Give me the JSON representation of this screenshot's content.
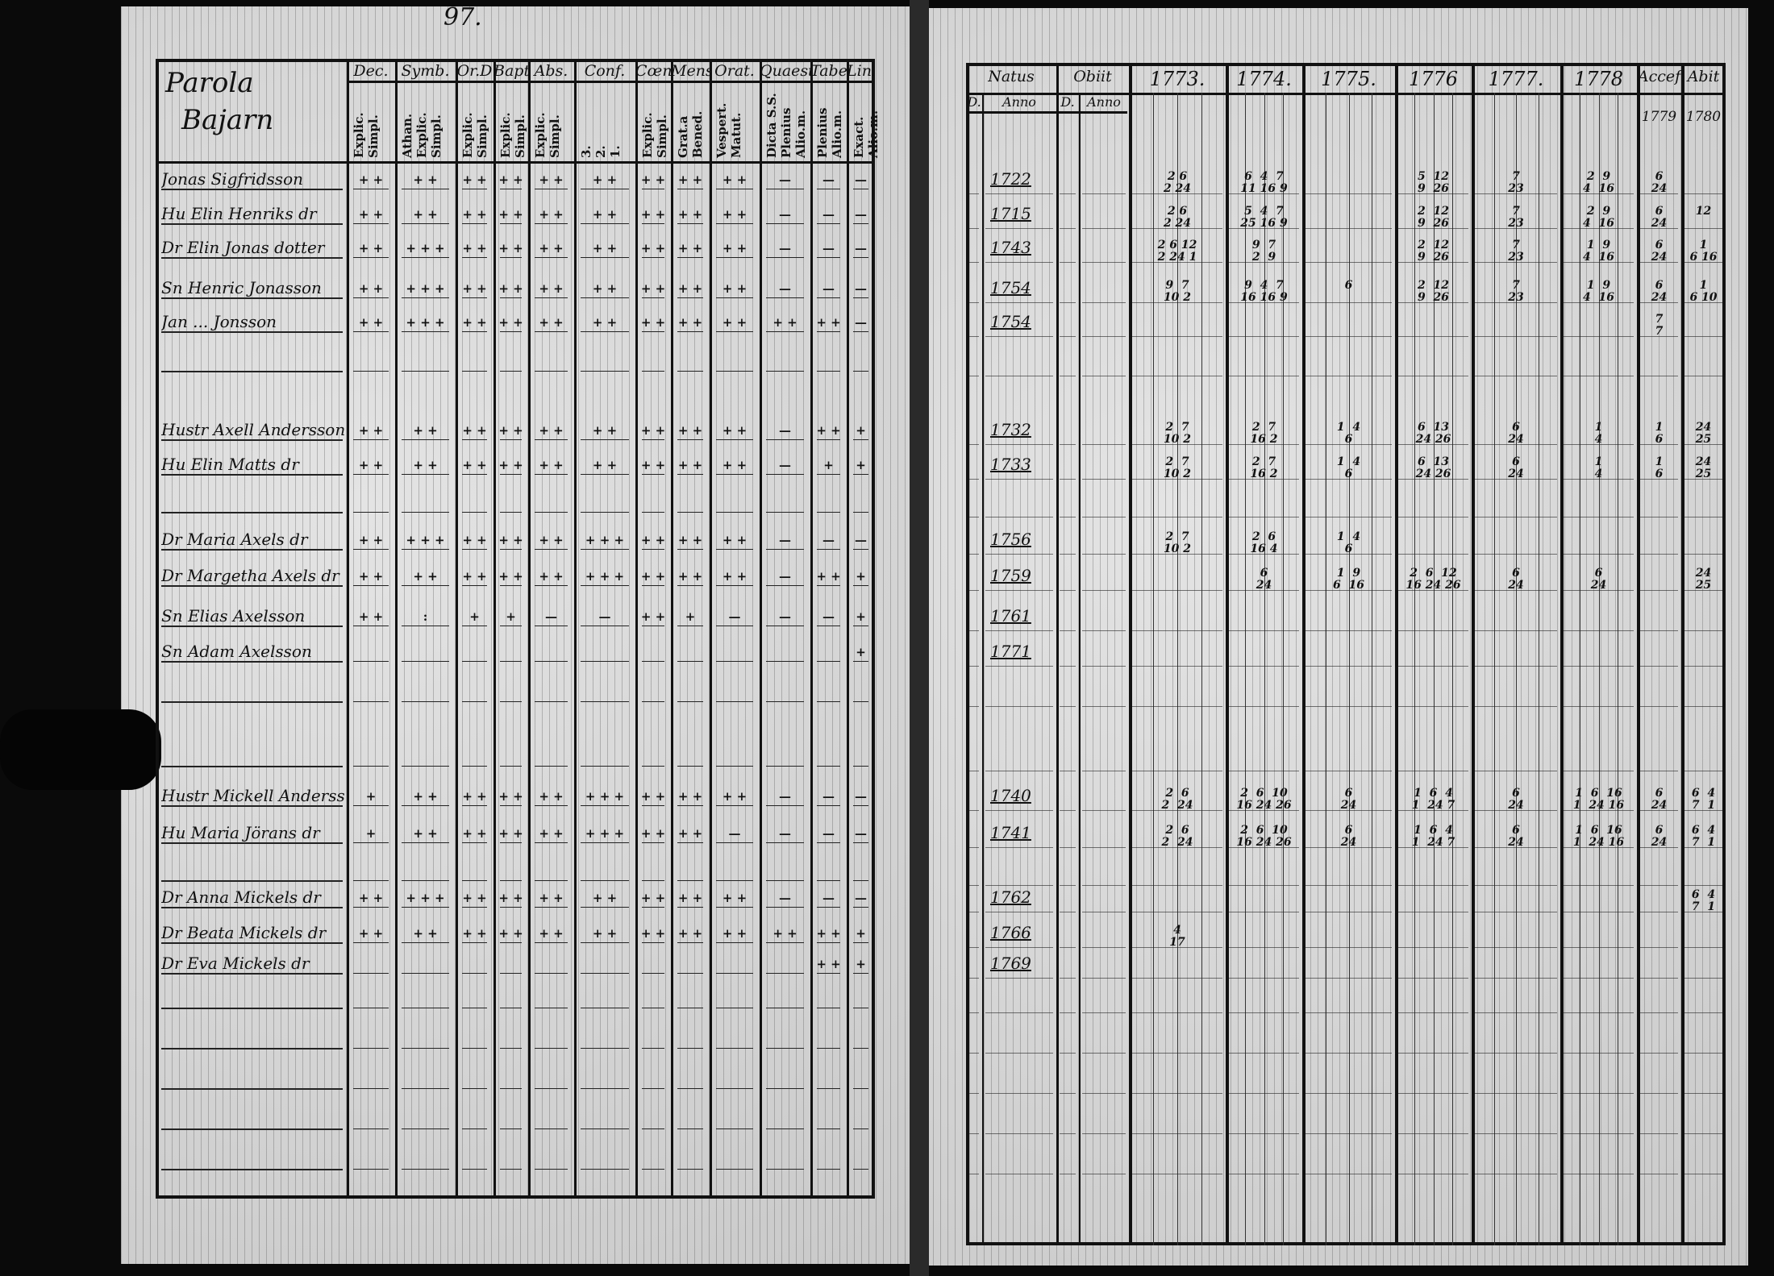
{
  "page_number": "97.",
  "left_page": {
    "title_lines": [
      "Parola",
      "Bajarn"
    ],
    "columns": [
      {
        "header": "Dec.",
        "sub": "Explic.\nSimpl."
      },
      {
        "header": "Symb.",
        "sub": "Athan.\nExplic.\nSimpl."
      },
      {
        "header": "Or.D",
        "sub": "Explic.\nSimpl."
      },
      {
        "header": "Bapt.",
        "sub": "Explic.\nSimpl."
      },
      {
        "header": "Abs.",
        "sub": "Explic.\nSimpl."
      },
      {
        "header": "Conf.",
        "sub": "3.\n2.\n1."
      },
      {
        "header": "Cœn.D",
        "sub": "Explic.\nSimpl."
      },
      {
        "header": "Mens.",
        "sub": "Grat.a\nBened."
      },
      {
        "header": "Orat.",
        "sub": "Vespert.\nMatut."
      },
      {
        "header": "Quaest.",
        "sub": "Dicta S.S.\nPlenius\nAlio.m."
      },
      {
        "header": "Tabe.",
        "sub": "Plenius\nAlio.m."
      },
      {
        "header": "Lin.",
        "sub": "Exact.\nAlio.m."
      }
    ]
  },
  "right_page": {
    "columns": [
      {
        "header": "Natus",
        "sub": [
          "D.",
          "Anno"
        ]
      },
      {
        "header": "Obiit",
        "sub": [
          "D.",
          "Anno"
        ]
      },
      {
        "header": "1773."
      },
      {
        "header": "1774."
      },
      {
        "header": "1775."
      },
      {
        "header": "1776"
      },
      {
        "header": "1777."
      },
      {
        "header": "1778"
      },
      {
        "header": "Accef",
        "sub": [
          "1779"
        ]
      },
      {
        "header": "Abit",
        "sub": [
          "1780"
        ]
      }
    ]
  },
  "rows": [
    {
      "name": "Jonas Sigfridsson",
      "marks": [
        "+ +",
        "+ +",
        "+ +",
        "+ +",
        "+ +",
        "+ +",
        "+ +",
        "+ +",
        "+ +",
        "—",
        "—",
        "—"
      ],
      "natus": "1722",
      "y1773": "2 6\n2 24",
      "y1774": "6  4  7\n11 16 9",
      "y1775": "",
      "y1776": "5  12\n9  26",
      "y1777": "7\n23",
      "y1778": "2  9\n4  16",
      "accef": "6\n24",
      "abit": ""
    },
    {
      "name": "Hu Elin Henriks dr",
      "marks": [
        "+ +",
        "+ +",
        "+ +",
        "+ +",
        "+ +",
        "+ +",
        "+ +",
        "+ +",
        "+ +",
        "—",
        "—",
        "—"
      ],
      "natus": "1715",
      "y1773": "2 6\n2 24",
      "y1774": "5  4  7\n25 16 9",
      "y1775": "",
      "y1776": "2  12\n9  26",
      "y1777": "7\n23",
      "y1778": "2  9\n4  16",
      "accef": "6\n24",
      "abit": "12"
    },
    {
      "name": "Dr Elin Jonas dotter",
      "marks": [
        "+ +",
        "+ + +",
        "+ +",
        "+ +",
        "+ +",
        "+ +",
        "+ +",
        "+ +",
        "+ +",
        "—",
        "—",
        "—"
      ],
      "natus": "1743",
      "y1773": "2 6 12\n2 24 1",
      "y1774": "9  7\n2  9",
      "y1775": "",
      "y1776": "2  12\n9  26",
      "y1777": "7\n23",
      "y1778": "1  9\n4  16",
      "accef": "6\n24",
      "abit": "1\n6 16"
    },
    {
      "name": "Sn Henric Jonasson",
      "marks": [
        "+ +",
        "+ + +",
        "+ +",
        "+ +",
        "+ +",
        "+ +",
        "+ +",
        "+ +",
        "+ +",
        "—",
        "—",
        "—"
      ],
      "natus": "1754",
      "y1773": "9  7\n10 2",
      "y1774": "9  4  7\n16 16 9",
      "y1775": "6",
      "y1776": "2  12\n9  26",
      "y1777": "7\n23",
      "y1778": "1  9\n4  16",
      "accef": "6\n24",
      "abit": "1\n6 10"
    },
    {
      "name": "Jan ... Jonsson",
      "marks": [
        "+ +",
        "+ + +",
        "+ +",
        "+ +",
        "+ +",
        "+ +",
        "+ +",
        "+ +",
        "+ +",
        "+ +",
        "+ +",
        "—"
      ],
      "natus": "1754",
      "y1773": "",
      "y1774": "",
      "y1775": "",
      "y1776": "",
      "y1777": "",
      "y1778": "",
      "accef": "7\n7",
      "abit": ""
    },
    {
      "name": "Hustr Axell Andersson",
      "marks": [
        "+ +",
        "+ +",
        "+ +",
        "+ +",
        "+ +",
        "+ +",
        "+ +",
        "+ +",
        "+ +",
        "—",
        "+ +",
        "+"
      ],
      "natus": "1732",
      "y1773": "2  7\n10 2",
      "y1774": "2  7\n16 2",
      "y1775": "1  4\n6",
      "y1776": "6  13\n24 26",
      "y1777": "6\n24",
      "y1778": "1\n4",
      "accef": "1\n6",
      "abit": "24\n25"
    },
    {
      "name": "Hu Elin Matts dr",
      "marks": [
        "+ +",
        "+ +",
        "+ +",
        "+ +",
        "+ +",
        "+ +",
        "+ +",
        "+ +",
        "+ +",
        "—",
        "+",
        "+"
      ],
      "natus": "1733",
      "y1773": "2  7\n10 2",
      "y1774": "2  7\n16 2",
      "y1775": "1  4\n6",
      "y1776": "6  13\n24 26",
      "y1777": "6\n24",
      "y1778": "1\n4",
      "accef": "1\n6",
      "abit": "24\n25"
    },
    {
      "name": "Dr Maria Axels dr",
      "marks": [
        "+ +",
        "+ + +",
        "+ +",
        "+ +",
        "+ +",
        "+ + +",
        "+ +",
        "+ +",
        "+ +",
        "—",
        "—",
        "—"
      ],
      "natus": "1756",
      "y1773": "2  7\n10 2",
      "y1774": "2  6\n16 4",
      "y1775": "1  4\n6",
      "y1776": "",
      "y1777": "",
      "y1778": "",
      "accef": "",
      "abit": ""
    },
    {
      "name": "Dr Margetha Axels dr",
      "marks": [
        "+ +",
        "+ +",
        "+ +",
        "+ +",
        "+ +",
        "+ + +",
        "+ +",
        "+ +",
        "+ +",
        "—",
        "+ +",
        "+"
      ],
      "natus": "1759",
      "y1773": "",
      "y1774": "6\n24",
      "y1775": "1  9\n6  16",
      "y1776": "2  6  12\n16 24 26",
      "y1777": "6\n24",
      "y1778": "6\n24",
      "accef": "",
      "abit": "24\n25"
    },
    {
      "name": "Sn Elias Axelsson",
      "marks": [
        "+ +",
        ":",
        "+",
        "+",
        "—",
        "—",
        "+ +",
        "+",
        "—",
        "—",
        "—",
        "+"
      ],
      "natus": "1761",
      "y1773": "",
      "y1774": "",
      "y1775": "",
      "y1776": "",
      "y1777": "",
      "y1778": "",
      "accef": "",
      "abit": ""
    },
    {
      "name": "Sn Adam Axelsson",
      "marks": [
        "",
        "",
        "",
        "",
        "",
        "",
        "",
        "",
        "",
        "",
        "",
        "+"
      ],
      "natus": "1771",
      "y1773": "",
      "y1774": "",
      "y1775": "",
      "y1776": "",
      "y1777": "",
      "y1778": "",
      "accef": "",
      "abit": ""
    },
    {
      "name": "Hustr Mickell Andersson",
      "marks": [
        "+",
        "+ +",
        "+ +",
        "+ +",
        "+ +",
        "+ + +",
        "+ +",
        "+ +",
        "+ +",
        "—",
        "—",
        "—"
      ],
      "natus": "1740",
      "y1773": "2  6\n2  24",
      "y1774": "2  6  10\n16 24 26",
      "y1775": "6\n24",
      "y1776": "1  6  4\n1  24 7",
      "y1777": "6\n24",
      "y1778": "1  6  16\n1  24 16",
      "accef": "6\n24",
      "abit": "6  4\n7  1"
    },
    {
      "name": "Hu Maria Jörans dr",
      "marks": [
        "+",
        "+ +",
        "+ +",
        "+ +",
        "+ +",
        "+ + +",
        "+ +",
        "+ +",
        "—",
        "—",
        "—",
        "—"
      ],
      "natus": "1741",
      "y1773": "2  6\n2  24",
      "y1774": "2  6  10\n16 24 26",
      "y1775": "6\n24",
      "y1776": "1  6  4\n1  24 7",
      "y1777": "6\n24",
      "y1778": "1  6  16\n1  24 16",
      "accef": "6\n24",
      "abit": "6  4\n7  1"
    },
    {
      "name": "Dr Anna Mickels dr",
      "marks": [
        "+ +",
        "+ + +",
        "+ +",
        "+ +",
        "+ +",
        "+ +",
        "+ +",
        "+ +",
        "+ +",
        "—",
        "—",
        "—"
      ],
      "natus": "1762",
      "y1773": "",
      "y1774": "",
      "y1775": "",
      "y1776": "",
      "y1777": "",
      "y1778": "",
      "accef": "",
      "abit": "6  4\n7  1"
    },
    {
      "name": "Dr Beata Mickels dr",
      "marks": [
        "+ +",
        "+ +",
        "+ +",
        "+ +",
        "+ +",
        "+ +",
        "+ +",
        "+ +",
        "+ +",
        "+ +",
        "+ +",
        "+"
      ],
      "natus": "1766",
      "y1773": "4\n17",
      "y1774": "",
      "y1775": "",
      "y1776": "",
      "y1777": "",
      "y1778": "",
      "accef": "",
      "abit": ""
    },
    {
      "name": "Dr Eva Mickels dr",
      "marks": [
        "",
        "",
        "",
        "",
        "",
        "",
        "",
        "",
        "",
        "",
        "+ +",
        "+"
      ],
      "natus": "1769",
      "y1773": "",
      "y1774": "",
      "y1775": "",
      "y1776": "",
      "y1777": "",
      "y1778": "",
      "accef": "",
      "abit": ""
    }
  ]
}
